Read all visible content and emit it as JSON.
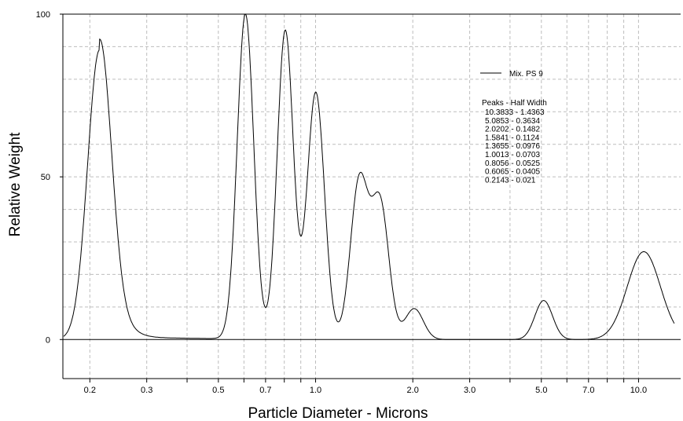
{
  "chart_data": {
    "type": "line",
    "title": "",
    "xlabel": "Particle Diameter  -  Microns",
    "ylabel": "Relative Weight",
    "x_scale": "log",
    "xlim": [
      0.165,
      13.5
    ],
    "ylim": [
      -12,
      100
    ],
    "x_ticks": [
      {
        "value": 0.2,
        "label": "0.2"
      },
      {
        "value": 0.3,
        "label": "0.3"
      },
      {
        "value": 0.5,
        "label": "0.5"
      },
      {
        "value": 0.7,
        "label": "0.7"
      },
      {
        "value": 1.0,
        "label": "1.0"
      },
      {
        "value": 2.0,
        "label": "2.0"
      },
      {
        "value": 3.0,
        "label": "3.0"
      },
      {
        "value": 5.0,
        "label": "5.0"
      },
      {
        "value": 7.0,
        "label": "7.0"
      },
      {
        "value": 10.0,
        "label": "10.0"
      }
    ],
    "y_ticks": [
      {
        "value": 0,
        "label": "0"
      },
      {
        "value": 50,
        "label": "50"
      },
      {
        "value": 100,
        "label": "100"
      }
    ],
    "grid": true,
    "legend": {
      "position": "top-right",
      "entries": [
        "Mix. PS 9"
      ]
    },
    "series": [
      {
        "name": "Mix. PS 9",
        "color": "#000000",
        "peaks": [
          {
            "x": 0.2143,
            "y": 89,
            "half_width": 0.021
          },
          {
            "x": 0.6065,
            "y": 100,
            "half_width": 0.0405
          },
          {
            "x": 0.8056,
            "y": 95,
            "half_width": 0.0525
          },
          {
            "x": 1.0013,
            "y": 76,
            "half_width": 0.0703
          },
          {
            "x": 1.3655,
            "y": 48.5,
            "half_width": 0.0976
          },
          {
            "x": 1.5841,
            "y": 41.5,
            "half_width": 0.1124
          },
          {
            "x": 2.0202,
            "y": 9.5,
            "half_width": 0.1482
          },
          {
            "x": 5.0853,
            "y": 12,
            "half_width": 0.3634
          },
          {
            "x": 10.3833,
            "y": 27,
            "half_width": 1.4363
          }
        ]
      }
    ],
    "annotation": {
      "header": "Peaks  -  Half Width",
      "rows": [
        "10.3833   -  1.4363",
        "5.0853   -  0.3634",
        "2.0202   -  0.1482",
        "1.5841   -  0.1124",
        "1.3655   -  0.0976",
        "1.0013   -  0.0703",
        "0.8056   -  0.0525",
        "0.6065   -  0.0405",
        "0.2143   -  0.021"
      ]
    }
  }
}
